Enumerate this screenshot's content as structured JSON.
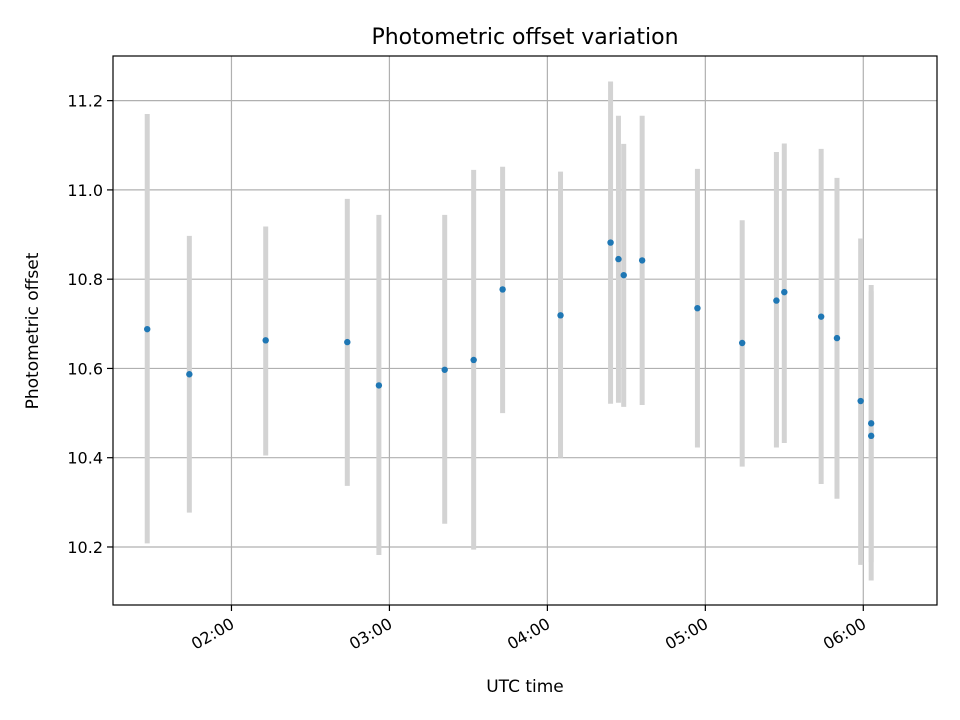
{
  "chart_data": {
    "type": "scatter",
    "title": "Photometric offset variation",
    "xlabel": "UTC time",
    "ylabel": "Photometric offset",
    "xlim": [
      "01:15",
      "06:28"
    ],
    "ylim": [
      10.07,
      11.3
    ],
    "grid": true,
    "x_ticks": [
      "02:00",
      "03:00",
      "04:00",
      "05:00",
      "06:00"
    ],
    "y_ticks": [
      "10.2",
      "10.4",
      "10.6",
      "10.8",
      "11.0",
      "11.2"
    ],
    "point_color": "#1f77b4",
    "errorbar_color": "#d3d3d3",
    "points": [
      {
        "t": "01:28",
        "y": 10.688,
        "lo": 10.208,
        "hi": 11.17
      },
      {
        "t": "01:44",
        "y": 10.587,
        "lo": 10.277,
        "hi": 10.897
      },
      {
        "t": "02:13",
        "y": 10.663,
        "lo": 10.405,
        "hi": 10.918
      },
      {
        "t": "02:44",
        "y": 10.659,
        "lo": 10.337,
        "hi": 10.98
      },
      {
        "t": "02:56",
        "y": 10.562,
        "lo": 10.182,
        "hi": 10.944
      },
      {
        "t": "03:21",
        "y": 10.597,
        "lo": 10.252,
        "hi": 10.944
      },
      {
        "t": "03:32",
        "y": 10.619,
        "lo": 10.194,
        "hi": 11.045
      },
      {
        "t": "03:43",
        "y": 10.777,
        "lo": 10.5,
        "hi": 11.052
      },
      {
        "t": "04:05",
        "y": 10.719,
        "lo": 10.4,
        "hi": 11.041
      },
      {
        "t": "04:24",
        "y": 10.882,
        "lo": 10.521,
        "hi": 11.243
      },
      {
        "t": "04:27",
        "y": 10.845,
        "lo": 10.523,
        "hi": 11.166
      },
      {
        "t": "04:29",
        "y": 10.809,
        "lo": 10.514,
        "hi": 11.103
      },
      {
        "t": "04:36",
        "y": 10.842,
        "lo": 10.518,
        "hi": 11.166
      },
      {
        "t": "04:57",
        "y": 10.735,
        "lo": 10.423,
        "hi": 11.047
      },
      {
        "t": "05:14",
        "y": 10.657,
        "lo": 10.38,
        "hi": 10.932
      },
      {
        "t": "05:27",
        "y": 10.752,
        "lo": 10.423,
        "hi": 11.085
      },
      {
        "t": "05:30",
        "y": 10.771,
        "lo": 10.433,
        "hi": 11.104
      },
      {
        "t": "05:44",
        "y": 10.716,
        "lo": 10.341,
        "hi": 11.092
      },
      {
        "t": "05:50",
        "y": 10.668,
        "lo": 10.308,
        "hi": 11.027
      },
      {
        "t": "05:59",
        "y": 10.527,
        "lo": 10.16,
        "hi": 10.891
      },
      {
        "t": "06:03",
        "y": 10.477,
        "lo": 10.166,
        "hi": 10.787
      },
      {
        "t": "06:03",
        "y": 10.449,
        "lo": 10.125,
        "hi": 10.773
      }
    ]
  }
}
